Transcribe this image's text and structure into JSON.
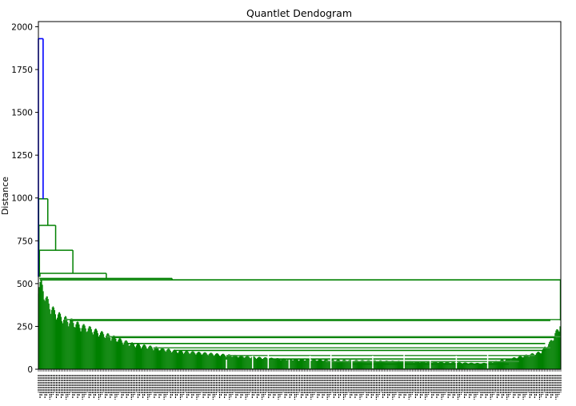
{
  "chart_data": {
    "type": "dendrogram",
    "title": "Quantlet Dendogram",
    "xlabel": "",
    "ylabel": "Distance",
    "ylim": [
      0,
      2030
    ],
    "yticks": [
      0,
      250,
      500,
      750,
      1000,
      1250,
      1500,
      1750,
      2000
    ],
    "grid": false,
    "colors": {
      "root_link": "#0000ff",
      "cluster_link": "#008000",
      "cluster_link_light": "#3c9a3c",
      "axis": "#000000",
      "background": "#ffffff"
    },
    "merges": [
      {
        "height": 1930,
        "color": "root_link"
      },
      {
        "height": 995,
        "color": "cluster_link"
      },
      {
        "height": 840,
        "color": "cluster_link"
      },
      {
        "height": 695,
        "color": "cluster_link"
      },
      {
        "height": 560,
        "color": "cluster_link"
      },
      {
        "height": 530,
        "color": "cluster_link"
      },
      {
        "height": 522,
        "color": "cluster_link"
      },
      {
        "height": 290,
        "color": "cluster_link"
      },
      {
        "height": 285,
        "color": "cluster_link"
      },
      {
        "height": 190,
        "color": "cluster_link"
      },
      {
        "height": 185,
        "color": "cluster_link"
      },
      {
        "height": 125,
        "color": "cluster_link"
      },
      {
        "height": 110,
        "color": "cluster_link"
      },
      {
        "height": 80,
        "color": "cluster_link"
      },
      {
        "height": 60,
        "color": "cluster_link"
      },
      {
        "height": 45,
        "color": "cluster_link"
      }
    ],
    "leaf_profile": [
      {
        "x": 0.0,
        "h": 520
      },
      {
        "x": 0.005,
        "h": 505
      },
      {
        "x": 0.01,
        "h": 470
      },
      {
        "x": 0.015,
        "h": 420
      },
      {
        "x": 0.02,
        "h": 390
      },
      {
        "x": 0.03,
        "h": 345
      },
      {
        "x": 0.04,
        "h": 320
      },
      {
        "x": 0.05,
        "h": 300
      },
      {
        "x": 0.06,
        "h": 290
      },
      {
        "x": 0.07,
        "h": 275
      },
      {
        "x": 0.08,
        "h": 260
      },
      {
        "x": 0.1,
        "h": 240
      },
      {
        "x": 0.12,
        "h": 215
      },
      {
        "x": 0.14,
        "h": 195
      },
      {
        "x": 0.16,
        "h": 170
      },
      {
        "x": 0.18,
        "h": 150
      },
      {
        "x": 0.2,
        "h": 140
      },
      {
        "x": 0.23,
        "h": 125
      },
      {
        "x": 0.26,
        "h": 110
      },
      {
        "x": 0.3,
        "h": 100
      },
      {
        "x": 0.34,
        "h": 90
      },
      {
        "x": 0.38,
        "h": 80
      },
      {
        "x": 0.42,
        "h": 70
      },
      {
        "x": 0.46,
        "h": 62
      },
      {
        "x": 0.5,
        "h": 58
      },
      {
        "x": 0.55,
        "h": 55
      },
      {
        "x": 0.6,
        "h": 52
      },
      {
        "x": 0.65,
        "h": 50
      },
      {
        "x": 0.7,
        "h": 48
      },
      {
        "x": 0.75,
        "h": 45
      },
      {
        "x": 0.8,
        "h": 40
      },
      {
        "x": 0.85,
        "h": 35
      },
      {
        "x": 0.9,
        "h": 60
      },
      {
        "x": 0.93,
        "h": 80
      },
      {
        "x": 0.96,
        "h": 100
      },
      {
        "x": 0.98,
        "h": 160
      },
      {
        "x": 0.995,
        "h": 240
      },
      {
        "x": 1.0,
        "h": 285
      }
    ]
  }
}
